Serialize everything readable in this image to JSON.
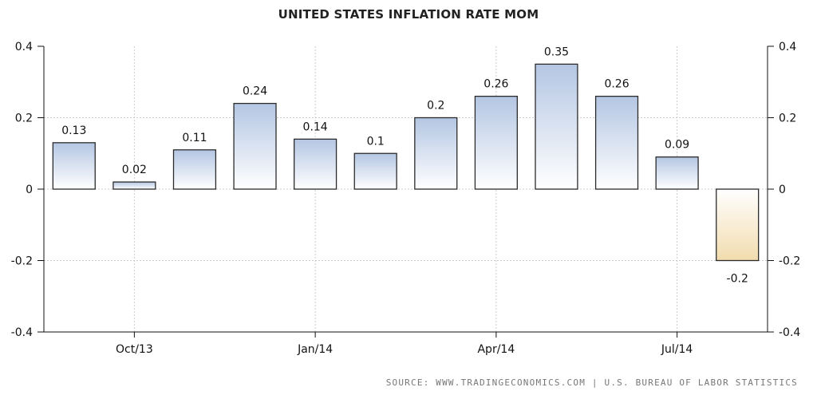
{
  "chart_data": {
    "type": "bar",
    "title": "UNITED STATES INFLATION RATE MOM",
    "source": "SOURCE: WWW.TRADINGECONOMICS.COM | U.S. BUREAU OF LABOR STATISTICS",
    "values": [
      0.13,
      0.02,
      0.11,
      0.24,
      0.14,
      0.1,
      0.2,
      0.26,
      0.35,
      0.26,
      0.09,
      -0.2
    ],
    "data_labels": [
      "0.13",
      "0.02",
      "0.11",
      "0.24",
      "0.14",
      "0.1",
      "0.2",
      "0.26",
      "0.35",
      "0.26",
      "0.09",
      "-0.2"
    ],
    "x_tick_labels": [
      {
        "label": "Oct/13",
        "index": 1
      },
      {
        "label": "Jan/14",
        "index": 4
      },
      {
        "label": "Apr/14",
        "index": 7
      },
      {
        "label": "Jul/14",
        "index": 10
      }
    ],
    "y_ticks": [
      0.4,
      0.2,
      0,
      -0.2,
      -0.4
    ],
    "y_tick_labels": [
      "0.4",
      "0.2",
      "0",
      "-0.2",
      "-0.4"
    ],
    "ylim": [
      -0.4,
      0.4
    ],
    "grid": true,
    "axes": "left-and-right",
    "colors": {
      "positive_top": "#b4c6e3",
      "positive_bottom": "#ffffff",
      "negative_top": "#ffffff",
      "negative_bottom": "#f2dcae",
      "bar_stroke": "#2b2b2b",
      "grid": "#cccccc"
    }
  }
}
